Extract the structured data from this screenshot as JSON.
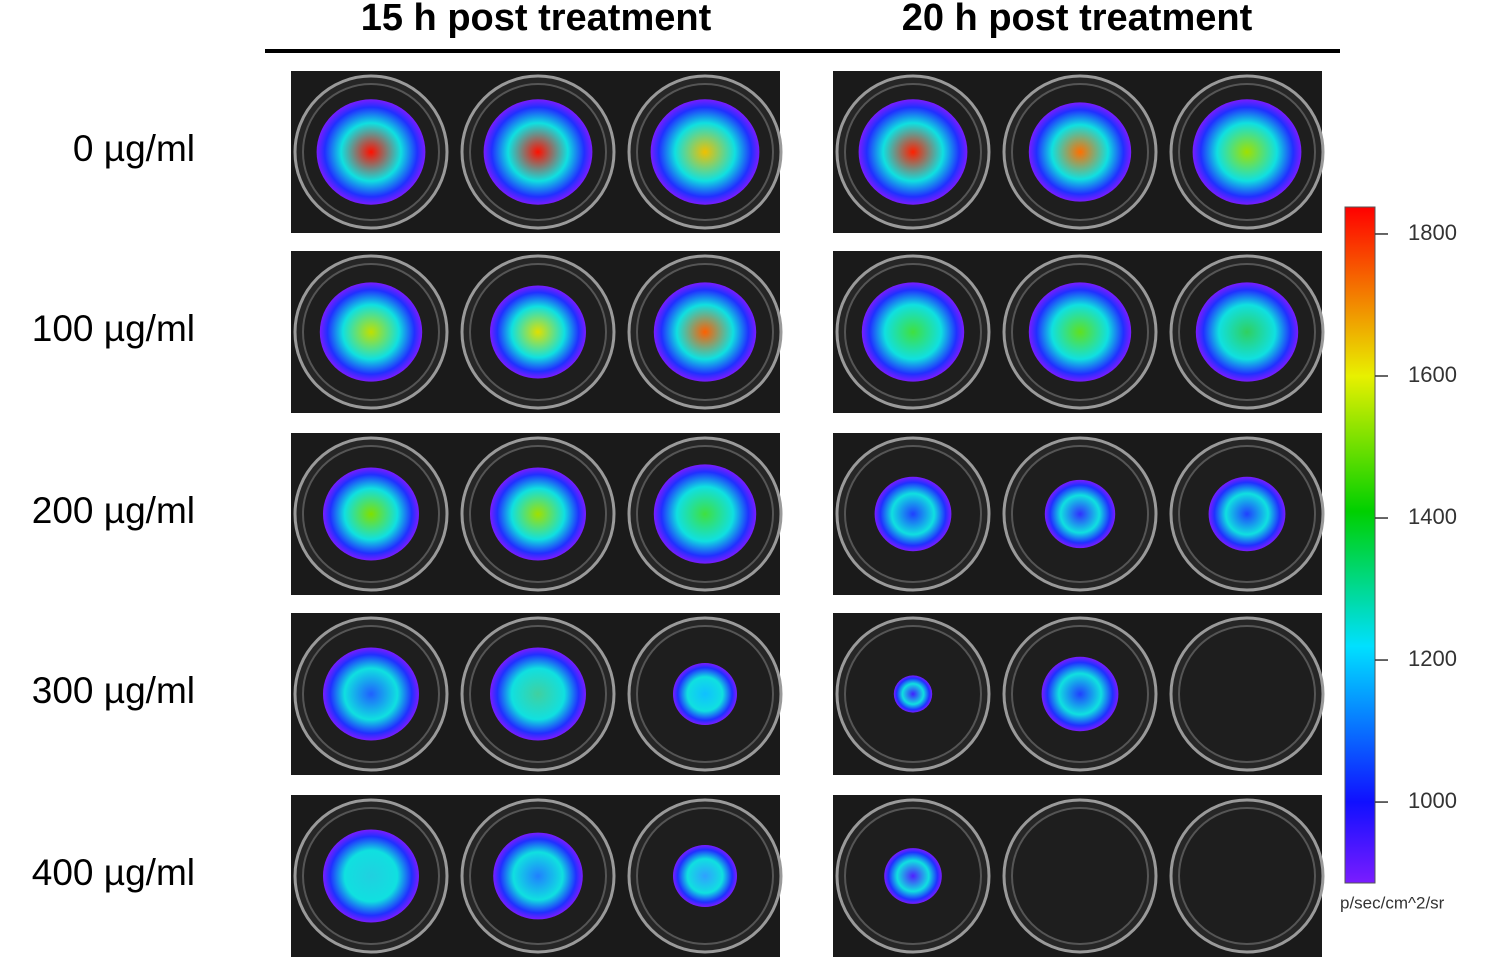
{
  "figure": {
    "columns": [
      "15 h post treatment",
      "20 h post treatment"
    ],
    "rows": [
      "0 µg/ml",
      "100 µg/ml",
      "200 µg/ml",
      "300 µg/ml",
      "400 µg/ml"
    ],
    "colorbar": {
      "lim": [
        886,
        1838
      ],
      "ticks": [
        1000,
        1200,
        1400,
        1600,
        1800
      ],
      "label": "p/sec/cm^2/sr"
    }
  }
}
